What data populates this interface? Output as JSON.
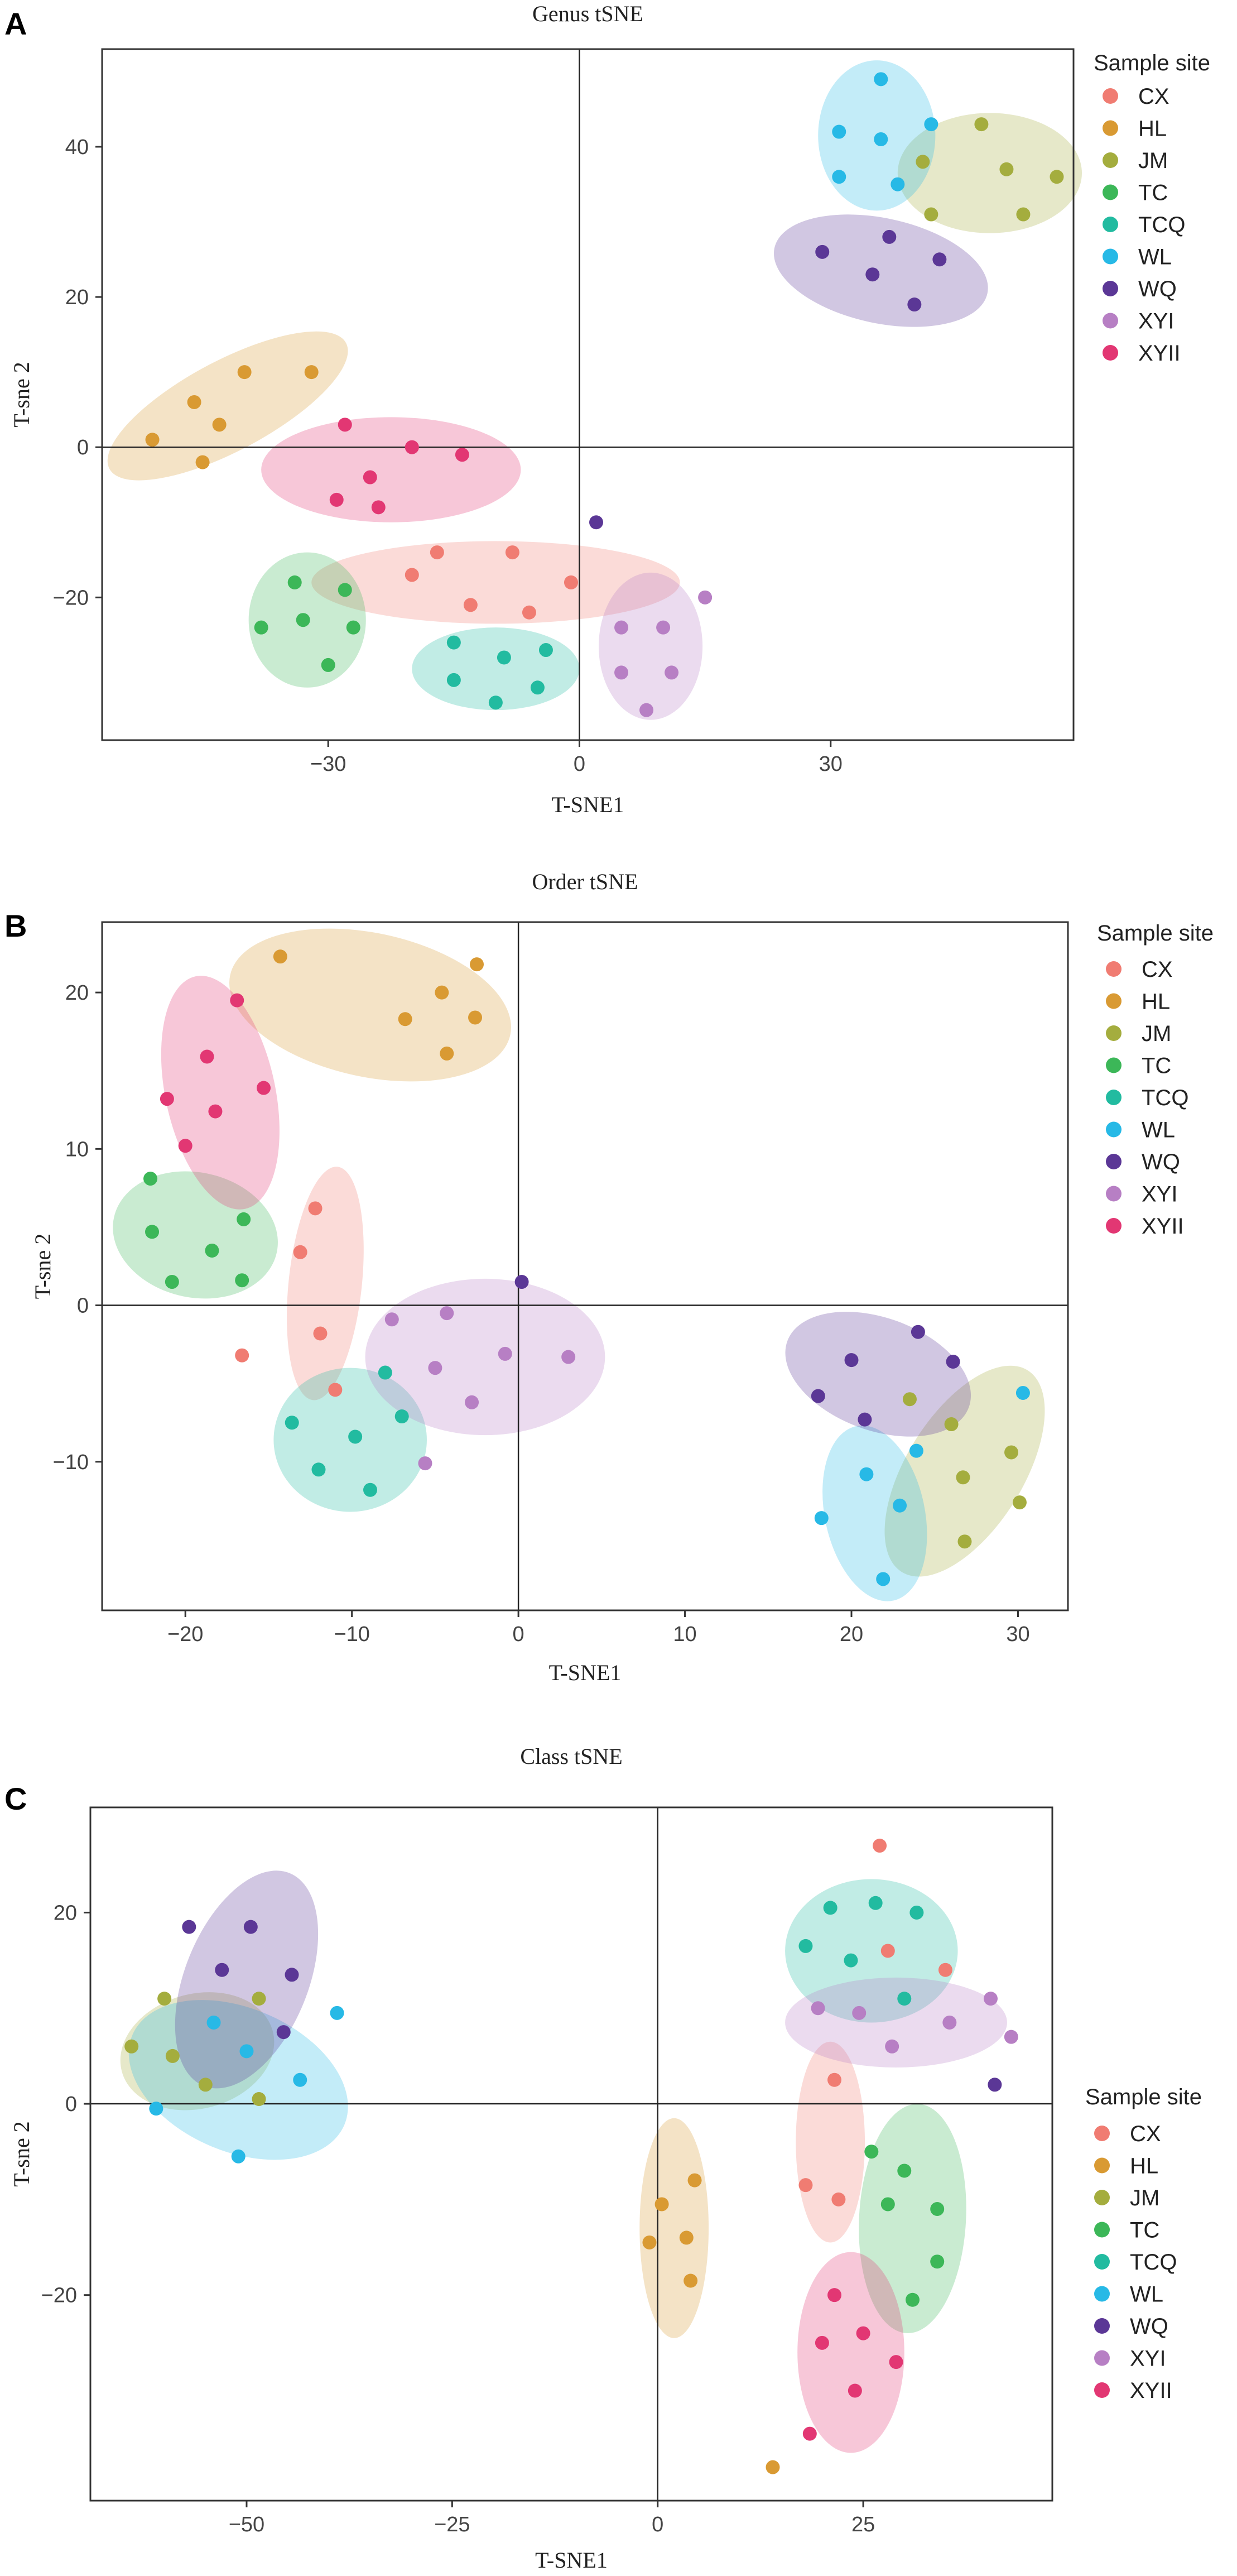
{
  "colors": {
    "CX": "#F07C72",
    "HL": "#D99A33",
    "JM": "#A4AD3E",
    "TC": "#3CB758",
    "TCQ": "#22BBA0",
    "WL": "#27B9E6",
    "WQ": "#5B3796",
    "XYI": "#B77FC4",
    "XYII": "#E23773"
  },
  "chart_data": [
    {
      "type": "scatter",
      "panel": "A",
      "title": "Genus tSNE",
      "xlabel": "T-SNE1",
      "ylabel": "T-sne 2",
      "xlim": [
        -57,
        59
      ],
      "ylim": [
        -39,
        53
      ],
      "xticks": [
        -30,
        0,
        30
      ],
      "xtick_labels": [
        "−30",
        "0",
        "30"
      ],
      "yticks": [
        -20,
        0,
        20,
        40
      ],
      "yticks_labels": [
        "−20",
        "0",
        "20",
        "40"
      ],
      "legend_title": "Sample site",
      "legend_position": "right",
      "series": [
        {
          "name": "CX",
          "x": [
            -20,
            -17,
            -13,
            -8,
            -6,
            -1
          ],
          "y": [
            -17,
            -14,
            -21,
            -14,
            -22,
            -18
          ]
        },
        {
          "name": "HL",
          "x": [
            -51,
            -46,
            -40,
            -45,
            -43,
            -32
          ],
          "y": [
            1,
            6,
            10,
            -2,
            3,
            10
          ]
        },
        {
          "name": "JM",
          "x": [
            41,
            48,
            51,
            42,
            53,
            57
          ],
          "y": [
            38,
            43,
            37,
            31,
            31,
            36
          ]
        },
        {
          "name": "TC",
          "x": [
            -38,
            -34,
            -33,
            -30,
            -28,
            -27
          ],
          "y": [
            -24,
            -18,
            -23,
            -29,
            -19,
            -24
          ]
        },
        {
          "name": "TCQ",
          "x": [
            -15,
            -15,
            -10,
            -9,
            -5,
            -4
          ],
          "y": [
            -26,
            -31,
            -34,
            -28,
            -32,
            -27
          ]
        },
        {
          "name": "WL",
          "x": [
            31,
            31,
            36,
            36,
            38,
            42
          ],
          "y": [
            42,
            36,
            49,
            41,
            35,
            43
          ]
        },
        {
          "name": "WQ",
          "x": [
            29,
            35,
            37,
            40,
            43,
            2
          ],
          "y": [
            26,
            23,
            28,
            19,
            25,
            -10
          ]
        },
        {
          "name": "XYI",
          "x": [
            5,
            5,
            8,
            10,
            11,
            15
          ],
          "y": [
            -24,
            -30,
            -35,
            -24,
            -30,
            -20
          ]
        },
        {
          "name": "XYII",
          "x": [
            -29,
            -28,
            -25,
            -20,
            -14,
            -24
          ],
          "y": [
            -7,
            3,
            -4,
            0,
            -1,
            -8
          ]
        }
      ],
      "ellipses": [
        {
          "name": "CX",
          "cx": -10,
          "cy": -18,
          "rx": 22,
          "ry": 5.5,
          "angle": 0
        },
        {
          "name": "HL",
          "cx": -42,
          "cy": 5.5,
          "rx": 16,
          "ry": 6,
          "angle": 28
        },
        {
          "name": "JM",
          "cx": 49,
          "cy": 36.5,
          "rx": 11,
          "ry": 8,
          "angle": 0
        },
        {
          "name": "TC",
          "cx": -32.5,
          "cy": -23,
          "rx": 7,
          "ry": 9,
          "angle": 0
        },
        {
          "name": "TCQ",
          "cx": -10,
          "cy": -29.5,
          "rx": 10,
          "ry": 5.5,
          "angle": 0
        },
        {
          "name": "WL",
          "cx": 35.5,
          "cy": 41.5,
          "rx": 7,
          "ry": 10,
          "angle": 0
        },
        {
          "name": "WQ",
          "cx": 36,
          "cy": 23.5,
          "rx": 13,
          "ry": 7,
          "angle": -12
        },
        {
          "name": "XYI",
          "cx": 8.5,
          "cy": -26.5,
          "rx": 6.2,
          "ry": 9.8,
          "angle": 0
        },
        {
          "name": "XYII",
          "cx": -22.5,
          "cy": -3,
          "rx": 15.5,
          "ry": 7,
          "angle": 0
        }
      ]
    },
    {
      "type": "scatter",
      "panel": "B",
      "title": "Order tSNE",
      "xlabel": "T-SNE1",
      "ylabel": "T-sne 2",
      "xlim": [
        -25,
        33
      ],
      "ylim": [
        -19.5,
        24.5
      ],
      "xticks": [
        -20,
        -10,
        0,
        10,
        20,
        30
      ],
      "xtick_labels": [
        "−20",
        "−10",
        "0",
        "10",
        "20",
        "30"
      ],
      "yticks": [
        -10,
        0,
        10,
        20
      ],
      "yticks_labels": [
        "−10",
        "0",
        "10",
        "20"
      ],
      "legend_title": "Sample site",
      "legend_position": "right",
      "series": [
        {
          "name": "CX",
          "x": [
            -12.2,
            -13.1,
            -11.9,
            -11.0,
            -16.6
          ],
          "y": [
            6.2,
            3.4,
            -1.8,
            -5.4,
            -3.2
          ]
        },
        {
          "name": "HL",
          "x": [
            -14.3,
            -6.8,
            -4.6,
            -4.3,
            -2.6,
            -2.5
          ],
          "y": [
            22.3,
            18.3,
            20.0,
            16.1,
            18.4,
            21.8
          ]
        },
        {
          "name": "JM",
          "x": [
            23.5,
            26.0,
            26.7,
            26.8,
            29.6,
            30.1
          ],
          "y": [
            -6.0,
            -7.6,
            -11.0,
            -15.1,
            -9.4,
            -12.6
          ]
        },
        {
          "name": "TC",
          "x": [
            -22.1,
            -22.0,
            -20.8,
            -18.4,
            -16.6,
            -16.5
          ],
          "y": [
            8.1,
            4.7,
            1.5,
            3.5,
            1.6,
            5.5
          ]
        },
        {
          "name": "TCQ",
          "x": [
            -13.6,
            -12.0,
            -9.8,
            -8.9,
            -8.0,
            -7.0
          ],
          "y": [
            -7.5,
            -10.5,
            -8.4,
            -11.8,
            -4.3,
            -7.1
          ]
        },
        {
          "name": "WL",
          "x": [
            18.2,
            20.9,
            21.9,
            22.9,
            23.9,
            30.3
          ],
          "y": [
            -13.6,
            -10.8,
            -17.5,
            -12.8,
            -9.3,
            -5.6
          ]
        },
        {
          "name": "WQ",
          "x": [
            18.0,
            20.0,
            20.8,
            24.0,
            26.1,
            0.2
          ],
          "y": [
            -5.8,
            -3.5,
            -7.3,
            -1.7,
            -3.6,
            1.5
          ]
        },
        {
          "name": "XYI",
          "x": [
            -7.6,
            -5.6,
            -5.0,
            -4.3,
            -2.8,
            -0.8,
            3.0
          ],
          "y": [
            -0.9,
            -10.1,
            -4.0,
            -0.5,
            -6.2,
            -3.1,
            -3.3
          ]
        },
        {
          "name": "XYII",
          "x": [
            -21.1,
            -20.0,
            -18.7,
            -18.2,
            -16.9,
            -15.3
          ],
          "y": [
            13.2,
            10.2,
            15.9,
            12.4,
            19.5,
            13.9
          ]
        }
      ],
      "ellipses": [
        {
          "name": "CX",
          "cx": -11.6,
          "cy": 1.4,
          "rx": 2.2,
          "ry": 7.5,
          "angle": -6
        },
        {
          "name": "HL",
          "cx": -8.9,
          "cy": 19.2,
          "rx": 8.6,
          "ry": 4.6,
          "angle": -12
        },
        {
          "name": "JM",
          "cx": 26.8,
          "cy": -10.6,
          "rx": 3.5,
          "ry": 7.6,
          "angle": -32
        },
        {
          "name": "TC",
          "cx": -19.4,
          "cy": 4.5,
          "rx": 5.0,
          "ry": 4.0,
          "angle": -12
        },
        {
          "name": "TCQ",
          "cx": -10.1,
          "cy": -8.6,
          "rx": 4.6,
          "ry": 4.6,
          "angle": 0
        },
        {
          "name": "WL",
          "cx": 21.4,
          "cy": -13.3,
          "rx": 3.0,
          "ry": 5.7,
          "angle": 12
        },
        {
          "name": "WQ",
          "cx": 21.6,
          "cy": -4.4,
          "rx": 5.8,
          "ry": 3.6,
          "angle": -20
        },
        {
          "name": "XYI",
          "cx": -2.0,
          "cy": -3.3,
          "rx": 7.2,
          "ry": 5.0,
          "angle": 0
        },
        {
          "name": "XYII",
          "cx": -17.9,
          "cy": 13.6,
          "rx": 3.3,
          "ry": 7.6,
          "angle": 12
        }
      ]
    },
    {
      "type": "scatter",
      "panel": "C",
      "title": "Class tSNE",
      "xlabel": "T-SNE1",
      "ylabel": "T-sne 2",
      "xlim": [
        -69,
        48
      ],
      "ylim": [
        -41.5,
        31
      ],
      "xticks": [
        -50,
        -25,
        0,
        25
      ],
      "xtick_labels": [
        "−50",
        "−25",
        "0",
        "25"
      ],
      "yticks": [
        -20,
        0,
        20
      ],
      "yticks_labels": [
        "−20",
        "0",
        "20"
      ],
      "legend_title": "Sample site",
      "legend_position": "right",
      "series": [
        {
          "name": "CX",
          "x": [
            18,
            21.5,
            22,
            27,
            28,
            35
          ],
          "y": [
            -8.5,
            2.5,
            -10,
            27,
            16,
            14
          ]
        },
        {
          "name": "HL",
          "x": [
            -1,
            0.5,
            3.5,
            4,
            4.5,
            14
          ],
          "y": [
            -14.5,
            -10.5,
            -14,
            -18.5,
            -8,
            -38
          ]
        },
        {
          "name": "JM",
          "x": [
            -64,
            -60,
            -59,
            -55,
            -48.5,
            -48.5
          ],
          "y": [
            6,
            11,
            5,
            2,
            11,
            0.5
          ]
        },
        {
          "name": "TC",
          "x": [
            26,
            28,
            31,
            30,
            34,
            34
          ],
          "y": [
            -5,
            -10.5,
            -20.5,
            -7,
            -11,
            -16.5
          ]
        },
        {
          "name": "TCQ",
          "x": [
            18,
            21,
            23.5,
            26.5,
            30,
            31.5
          ],
          "y": [
            16.5,
            20.5,
            15,
            21,
            11,
            20
          ]
        },
        {
          "name": "WL",
          "x": [
            -61,
            -54,
            -51,
            -50,
            -43.5,
            -39
          ],
          "y": [
            -0.5,
            8.5,
            -5.5,
            5.5,
            2.5,
            9.5
          ]
        },
        {
          "name": "WQ",
          "x": [
            -57,
            -53,
            -49.5,
            -45.5,
            -44.5,
            41
          ],
          "y": [
            18.5,
            14,
            18.5,
            7.5,
            13.5,
            2
          ]
        },
        {
          "name": "XYI",
          "x": [
            19.5,
            24.5,
            28.5,
            35.5,
            40.5,
            43
          ],
          "y": [
            10,
            9.5,
            6,
            8.5,
            11,
            7
          ]
        },
        {
          "name": "XYII",
          "x": [
            20,
            21.5,
            18.5,
            24,
            25,
            29
          ],
          "y": [
            -25,
            -20,
            -34.5,
            -30,
            -24,
            -27
          ]
        }
      ],
      "ellipses": [
        {
          "name": "CX",
          "cx": 21,
          "cy": -4,
          "rx": 4.2,
          "ry": 10.5,
          "angle": 0
        },
        {
          "name": "HL",
          "cx": 2,
          "cy": -13,
          "rx": 4.2,
          "ry": 11.5,
          "angle": 0
        },
        {
          "name": "JM",
          "cx": -56,
          "cy": 5.5,
          "rx": 9.5,
          "ry": 6.0,
          "angle": 15
        },
        {
          "name": "TC",
          "cx": 31,
          "cy": -12,
          "rx": 6.5,
          "ry": 12,
          "angle": -3
        },
        {
          "name": "TCQ",
          "cx": 26,
          "cy": 16,
          "rx": 10.5,
          "ry": 7.5,
          "angle": 0
        },
        {
          "name": "WL",
          "cx": -51,
          "cy": 2.5,
          "rx": 14,
          "ry": 7.5,
          "angle": -23
        },
        {
          "name": "WQ",
          "cx": -50,
          "cy": 13,
          "rx": 7.5,
          "ry": 12,
          "angle": -22
        },
        {
          "name": "XYI",
          "cx": 29,
          "cy": 8.5,
          "rx": 13.5,
          "ry": 4.7,
          "angle": 0
        },
        {
          "name": "XYII",
          "cx": 23.5,
          "cy": -26,
          "rx": 6.5,
          "ry": 10.5,
          "angle": 0
        }
      ]
    }
  ],
  "legend_labels": [
    "CX",
    "HL",
    "JM",
    "TC",
    "TCQ",
    "WL",
    "WQ",
    "XYI",
    "XYII"
  ]
}
